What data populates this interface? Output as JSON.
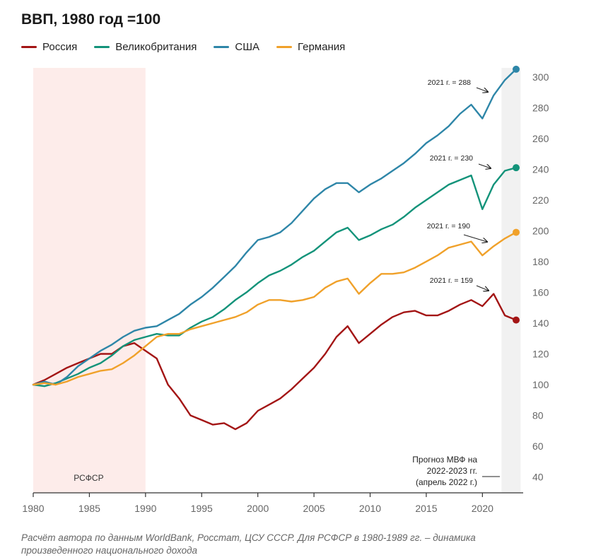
{
  "title": "ВВП, 1980 год =100",
  "caption": "Расчёт автора по данным WorldBank, Росстат, ЦСУ СССР.  Для РСФСР в 1980-1989 гг. – динамика произведенного национального дохода",
  "colors": {
    "russia": "#a31515",
    "uk": "#13937a",
    "usa": "#2e86a8",
    "germany": "#f0a12a",
    "rsfsr_band": "#fdecea",
    "forecast_band": "#f1f1f1",
    "axis": "#333333"
  },
  "chart_data": {
    "type": "line",
    "title": "ВВП, 1980 год =100",
    "xlabel": "",
    "ylabel": "",
    "xlim": [
      1980,
      2023
    ],
    "ylim": [
      40,
      305
    ],
    "x_ticks": [
      1980,
      1985,
      1990,
      1995,
      2000,
      2005,
      2010,
      2015,
      2020
    ],
    "y_ticks": [
      40,
      60,
      80,
      100,
      120,
      140,
      160,
      180,
      200,
      220,
      240,
      260,
      280,
      300
    ],
    "y_axis_side": "right",
    "legend_position": "top-left",
    "shaded_regions": [
      {
        "name": "rsfsr",
        "x_start": 1980,
        "x_end": 1990,
        "label": "РСФСР"
      },
      {
        "name": "forecast",
        "x_start": 2021.7,
        "x_end": 2023.4,
        "label_lines": [
          "Прогноз МВФ на",
          "2022-2023 гг.",
          "(апрель 2022 г.)"
        ]
      }
    ],
    "x": [
      1980,
      1981,
      1982,
      1983,
      1984,
      1985,
      1986,
      1987,
      1988,
      1989,
      1990,
      1991,
      1992,
      1993,
      1994,
      1995,
      1996,
      1997,
      1998,
      1999,
      2000,
      2001,
      2002,
      2003,
      2004,
      2005,
      2006,
      2007,
      2008,
      2009,
      2010,
      2011,
      2012,
      2013,
      2014,
      2015,
      2016,
      2017,
      2018,
      2019,
      2020,
      2021,
      2022,
      2023
    ],
    "series": [
      {
        "key": "russia",
        "name": "Россия",
        "values": [
          100,
          103,
          107,
          111,
          114,
          117,
          120,
          120,
          125,
          127,
          122,
          117,
          100,
          91,
          80,
          77,
          74,
          75,
          71,
          75,
          83,
          87,
          91,
          97,
          104,
          111,
          120,
          131,
          138,
          127,
          133,
          139,
          144,
          147,
          148,
          145,
          145,
          148,
          152,
          155,
          151,
          159,
          145,
          142
        ]
      },
      {
        "key": "uk",
        "name": "Великобритания",
        "values": [
          100,
          99,
          101,
          104,
          107,
          111,
          114,
          119,
          125,
          129,
          131,
          133,
          132,
          132,
          137,
          141,
          144,
          149,
          155,
          160,
          166,
          171,
          174,
          178,
          183,
          187,
          193,
          199,
          202,
          194,
          197,
          201,
          204,
          209,
          215,
          220,
          225,
          230,
          233,
          236,
          214,
          230,
          239,
          241
        ]
      },
      {
        "key": "usa",
        "name": "США",
        "values": [
          100,
          102,
          100,
          105,
          112,
          117,
          122,
          126,
          131,
          135,
          137,
          138,
          142,
          146,
          152,
          157,
          163,
          170,
          177,
          186,
          194,
          196,
          199,
          205,
          213,
          221,
          227,
          231,
          231,
          225,
          230,
          234,
          239,
          244,
          250,
          257,
          262,
          268,
          276,
          282,
          273,
          288,
          298,
          305
        ]
      },
      {
        "key": "germany",
        "name": "Германия",
        "values": [
          100,
          101,
          100,
          102,
          105,
          107,
          109,
          110,
          114,
          119,
          125,
          131,
          133,
          133,
          136,
          138,
          140,
          142,
          144,
          147,
          152,
          155,
          155,
          154,
          155,
          157,
          163,
          167,
          169,
          159,
          166,
          172,
          172,
          173,
          176,
          180,
          184,
          189,
          191,
          193,
          184,
          190,
          195,
          199
        ]
      }
    ],
    "annotations": [
      {
        "series": "usa",
        "text": "2021 г. = 288"
      },
      {
        "series": "uk",
        "text": "2021 г. = 230"
      },
      {
        "series": "germany",
        "text": "2021 г. = 190"
      },
      {
        "series": "russia",
        "text": "2021 г. = 159"
      }
    ]
  }
}
